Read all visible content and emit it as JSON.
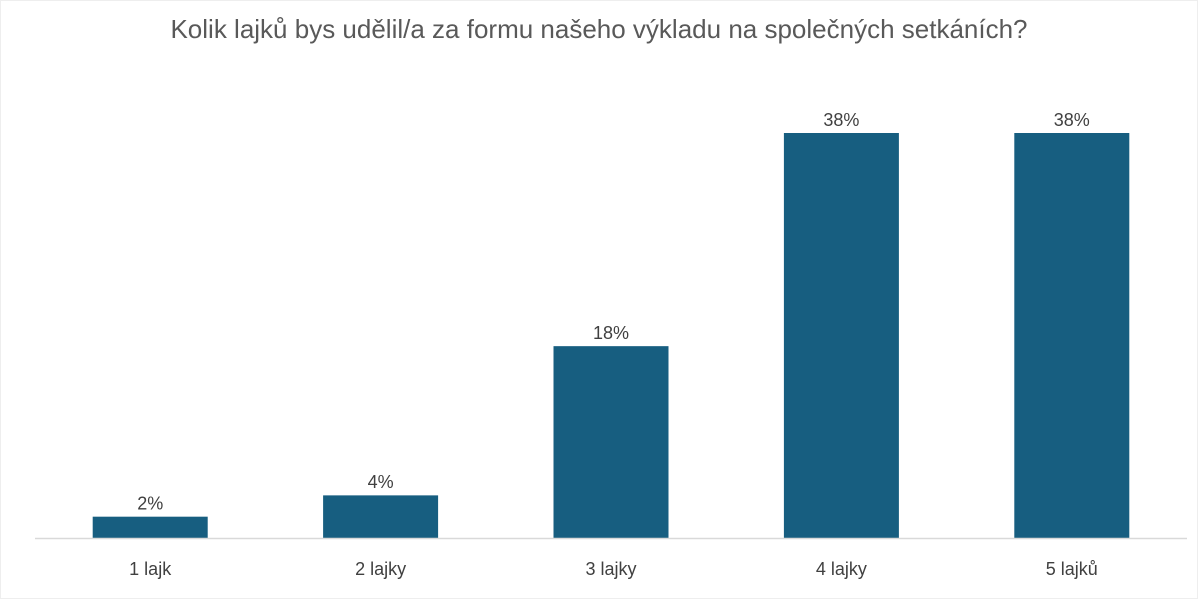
{
  "chart_data": {
    "type": "bar",
    "title": "Kolik lajků bys udělil/a za formu našeho výkladu na společných setkáních?",
    "categories": [
      "1 lajk",
      "2 lajky",
      "3 lajky",
      "4 lajky",
      "5 lajků"
    ],
    "values": [
      2,
      4,
      18,
      38,
      38
    ],
    "value_labels": [
      "2%",
      "4%",
      "18%",
      "38%",
      "38%"
    ],
    "color": "#175e80"
  }
}
